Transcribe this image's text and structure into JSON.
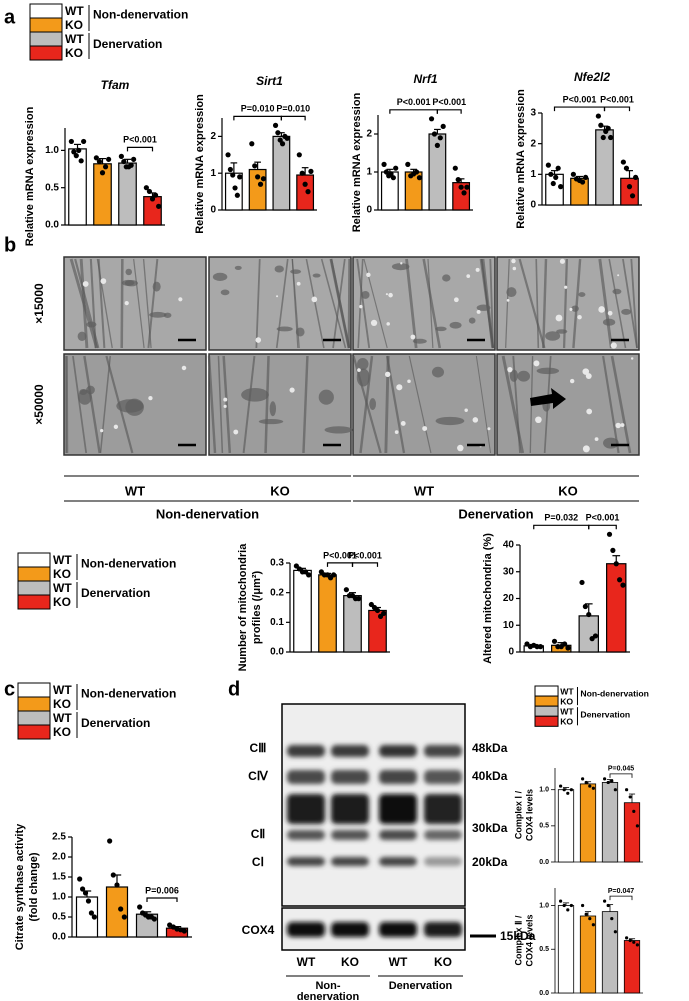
{
  "panels": [
    "a",
    "b",
    "c",
    "d"
  ],
  "legend": {
    "entries": [
      {
        "label": "WT",
        "color": "#ffffff"
      },
      {
        "label": "KO",
        "color": "#f39a1a"
      },
      {
        "label": "WT",
        "color": "#bdbdbd"
      },
      {
        "label": "KO",
        "color": "#e8261c"
      }
    ],
    "groups": [
      "Non-denervation",
      "Denervation"
    ]
  },
  "em": {
    "magnifications": [
      "×15000",
      "×50000"
    ],
    "genotypes": [
      "WT",
      "KO",
      "WT",
      "KO"
    ],
    "conditions": [
      "Non-denervation",
      "Denervation"
    ]
  },
  "blot": {
    "bands": [
      "CⅢ",
      "CⅣ",
      "CⅡ",
      "CⅠ"
    ],
    "loading": "COX4",
    "markers": [
      "48kDa",
      "40kDa",
      "30kDa",
      "20kDa"
    ],
    "loading_marker": "15kDa",
    "genotypes": [
      "WT",
      "KO",
      "WT",
      "KO"
    ],
    "conditions": [
      [
        "Non-",
        "denervation"
      ],
      [
        "Denervation"
      ]
    ]
  },
  "chart_data": [
    {
      "type": "bar",
      "title": "Tfam",
      "ylabel": [
        "Relative mRNA expression"
      ],
      "colors": [
        "#ffffff",
        "#f39a1a",
        "#bdbdbd",
        "#e8261c"
      ],
      "values": [
        1.02,
        0.82,
        0.83,
        0.38
      ],
      "errors": [
        0.06,
        0.07,
        0.05,
        0.05
      ],
      "points": [
        [
          1.12,
          0.98,
          0.93,
          1.0,
          0.86,
          1.12
        ],
        [
          0.9,
          0.85,
          0.7,
          0.78,
          0.88
        ],
        [
          0.92,
          0.85,
          0.78,
          0.78,
          0.8,
          0.88
        ],
        [
          0.5,
          0.45,
          0.35,
          0.4,
          0.25
        ]
      ],
      "ylim": [
        0,
        1.3
      ],
      "yticks": [
        {
          "value": 0,
          "label": "0.0"
        },
        0.5,
        {
          "value": 1,
          "label": "1.0"
        }
      ],
      "comparisons": [
        {
          "text": "P<0.001",
          "groups": [
            2,
            3
          ]
        }
      ]
    },
    {
      "type": "bar",
      "title": "Sirt1",
      "ylabel": [
        "Relative mRNA expression"
      ],
      "colors": [
        "#ffffff",
        "#f39a1a",
        "#bdbdbd",
        "#e8261c"
      ],
      "values": [
        1.0,
        1.1,
        2.0,
        0.95
      ],
      "errors": [
        0.28,
        0.2,
        0.1,
        0.2
      ],
      "points": [
        [
          1.5,
          1.1,
          0.95,
          0.6,
          0.4,
          0.9
        ],
        [
          1.8,
          1.2,
          0.9,
          0.7,
          0.85
        ],
        [
          2.3,
          2.1,
          1.9,
          1.8,
          2.0,
          1.95
        ],
        [
          1.5,
          1.0,
          0.7,
          0.5,
          1.05
        ]
      ],
      "ylim": [
        0,
        2.5
      ],
      "yticks": [
        0,
        1,
        2
      ],
      "comparisons": [
        {
          "text": "P=0.010",
          "groups": [
            0,
            2
          ]
        },
        {
          "text": "P=0.010",
          "groups": [
            2,
            3
          ]
        }
      ]
    },
    {
      "type": "bar",
      "title": "Nrf1",
      "ylabel": [
        "Relative mRNA expression"
      ],
      "colors": [
        "#ffffff",
        "#f39a1a",
        "#bdbdbd",
        "#e8261c"
      ],
      "values": [
        1.0,
        1.0,
        2.0,
        0.72
      ],
      "errors": [
        0.07,
        0.07,
        0.12,
        0.1
      ],
      "points": [
        [
          1.2,
          1.0,
          0.9,
          0.95,
          0.85,
          1.1
        ],
        [
          1.2,
          0.9,
          0.95,
          1.0,
          0.85
        ],
        [
          2.4,
          2.0,
          1.7,
          1.9,
          2.2
        ],
        [
          1.1,
          0.8,
          0.6,
          0.45,
          0.6
        ]
      ],
      "ylim": [
        0,
        2.5
      ],
      "yticks": [
        0,
        1,
        2
      ],
      "comparisons": [
        {
          "text": "P<0.001",
          "groups": [
            0,
            2
          ]
        },
        {
          "text": "P<0.001",
          "groups": [
            2,
            3
          ]
        }
      ]
    },
    {
      "type": "bar",
      "title": "Nfe2l2",
      "ylabel": [
        "Relative mRNA expression"
      ],
      "colors": [
        "#ffffff",
        "#f39a1a",
        "#bdbdbd",
        "#e8261c"
      ],
      "values": [
        1.0,
        0.87,
        2.45,
        0.87
      ],
      "errors": [
        0.12,
        0.06,
        0.12,
        0.25
      ],
      "points": [
        [
          1.3,
          1.0,
          0.7,
          0.9,
          1.2,
          0.6
        ],
        [
          1.0,
          0.85,
          0.8,
          0.75,
          0.9
        ],
        [
          2.9,
          2.6,
          2.2,
          2.4,
          2.5,
          2.2
        ],
        [
          1.4,
          1.2,
          0.6,
          0.3,
          0.9
        ]
      ],
      "ylim": [
        0,
        3
      ],
      "yticks": [
        0,
        1,
        2,
        3
      ],
      "comparisons": [
        {
          "text": "P<0.001",
          "groups": [
            0,
            2
          ]
        },
        {
          "text": "P<0.001",
          "groups": [
            2,
            3
          ]
        }
      ]
    },
    {
      "type": "bar",
      "ylabel": [
        "Number of mitochondria",
        "profiles (/μm²)"
      ],
      "colors": [
        "#ffffff",
        "#f39a1a",
        "#bdbdbd",
        "#e8261c"
      ],
      "values": [
        0.275,
        0.26,
        0.19,
        0.14
      ],
      "errors": [
        0.007,
        0.005,
        0.01,
        0.01
      ],
      "points": [
        [
          0.29,
          0.28,
          0.27,
          0.27,
          0.26
        ],
        [
          0.27,
          0.26,
          0.26,
          0.25,
          0.26
        ],
        [
          0.21,
          0.19,
          0.19,
          0.18,
          0.18
        ],
        [
          0.16,
          0.15,
          0.14,
          0.12,
          0.13
        ]
      ],
      "ylim": [
        0,
        0.3
      ],
      "yticks": [
        {
          "value": 0,
          "label": "0.0"
        },
        0.1,
        0.2,
        0.3
      ],
      "comparisons": [
        {
          "text": "P<0.001",
          "groups": [
            1,
            2
          ]
        },
        {
          "text": "P<0.001",
          "groups": [
            2,
            3
          ]
        }
      ]
    },
    {
      "type": "bar",
      "ylabel": [
        "Altered mitochondria (%)"
      ],
      "colors": [
        "#ffffff",
        "#f39a1a",
        "#bdbdbd",
        "#e8261c"
      ],
      "values": [
        2.3,
        2.5,
        13.5,
        33
      ],
      "errors": [
        0.5,
        1,
        4.5,
        3
      ],
      "points": [
        [
          3,
          2,
          2.5,
          2,
          2
        ],
        [
          4,
          2,
          2,
          3,
          1.5
        ],
        [
          26,
          17,
          14,
          5,
          6
        ],
        [
          44,
          38,
          33,
          27,
          25
        ]
      ],
      "ylim": [
        0,
        40
      ],
      "yticks": [
        0,
        10,
        20,
        30,
        40
      ],
      "comparisons": [
        {
          "text": "P=0.032",
          "groups": [
            0,
            2
          ]
        },
        {
          "text": "P<0.001",
          "groups": [
            2,
            3
          ]
        }
      ]
    },
    {
      "type": "bar",
      "ylabel": [
        "Citrate synthase activity",
        "(fold change)"
      ],
      "colors": [
        "#ffffff",
        "#f39a1a",
        "#bdbdbd",
        "#e8261c"
      ],
      "values": [
        1.0,
        1.25,
        0.57,
        0.22
      ],
      "errors": [
        0.15,
        0.3,
        0.06,
        0.04
      ],
      "points": [
        [
          1.45,
          1.2,
          1.1,
          0.9,
          0.6,
          0.5
        ],
        [
          2.4,
          1.55,
          1.3,
          0.7,
          0.5
        ],
        [
          0.75,
          0.6,
          0.55,
          0.5,
          0.5,
          0.45
        ],
        [
          0.3,
          0.25,
          0.2,
          0.18,
          0.15
        ]
      ],
      "ylim": [
        0,
        2.5
      ],
      "yticks": [
        {
          "value": 0,
          "label": "0.0"
        },
        0.5,
        {
          "value": 1,
          "label": "1.0"
        },
        1.5,
        {
          "value": 2,
          "label": "2.0"
        },
        2.5
      ],
      "comparisons": [
        {
          "text": "P=0.006",
          "groups": [
            2,
            3
          ]
        }
      ]
    },
    {
      "type": "bar",
      "ylabel": [
        "Complex Ⅰ /",
        "COX4 levels"
      ],
      "colors": [
        "#ffffff",
        "#f39a1a",
        "#bdbdbd",
        "#e8261c"
      ],
      "values": [
        1.0,
        1.08,
        1.1,
        0.82
      ],
      "errors": [
        0.03,
        0.03,
        0.04,
        0.12
      ],
      "points": [
        [
          1.05,
          1.0,
          0.95,
          1.0
        ],
        [
          1.15,
          1.1,
          1.05,
          1.02
        ],
        [
          1.15,
          1.1,
          1.12,
          1.0
        ],
        [
          1.0,
          0.9,
          0.7,
          0.5
        ]
      ],
      "ylim": [
        0,
        1.3
      ],
      "yticks": [
        {
          "value": 0,
          "label": "0.0"
        },
        0.5,
        {
          "value": 1,
          "label": "1.0"
        }
      ],
      "comparisons": [
        {
          "text": "P=0.045",
          "groups": [
            2,
            3
          ]
        }
      ]
    },
    {
      "type": "bar",
      "ylabel": [
        "Complex Ⅱ /",
        "COX4 levels"
      ],
      "colors": [
        "#ffffff",
        "#f39a1a",
        "#bdbdbd",
        "#e8261c"
      ],
      "values": [
        1.0,
        0.88,
        0.93,
        0.6
      ],
      "errors": [
        0.03,
        0.05,
        0.08,
        0.02
      ],
      "points": [
        [
          1.05,
          1.0,
          0.95,
          1.0
        ],
        [
          1.0,
          0.9,
          0.85,
          0.78
        ],
        [
          1.05,
          1.0,
          0.85,
          0.7
        ],
        [
          0.63,
          0.6,
          0.58,
          0.55
        ]
      ],
      "ylim": [
        0,
        1.2
      ],
      "yticks": [
        {
          "value": 0,
          "label": "0.0"
        },
        0.5,
        {
          "value": 1,
          "label": "1.0"
        }
      ],
      "comparisons": [
        {
          "text": "P=0.047",
          "groups": [
            2,
            3
          ]
        }
      ]
    }
  ]
}
